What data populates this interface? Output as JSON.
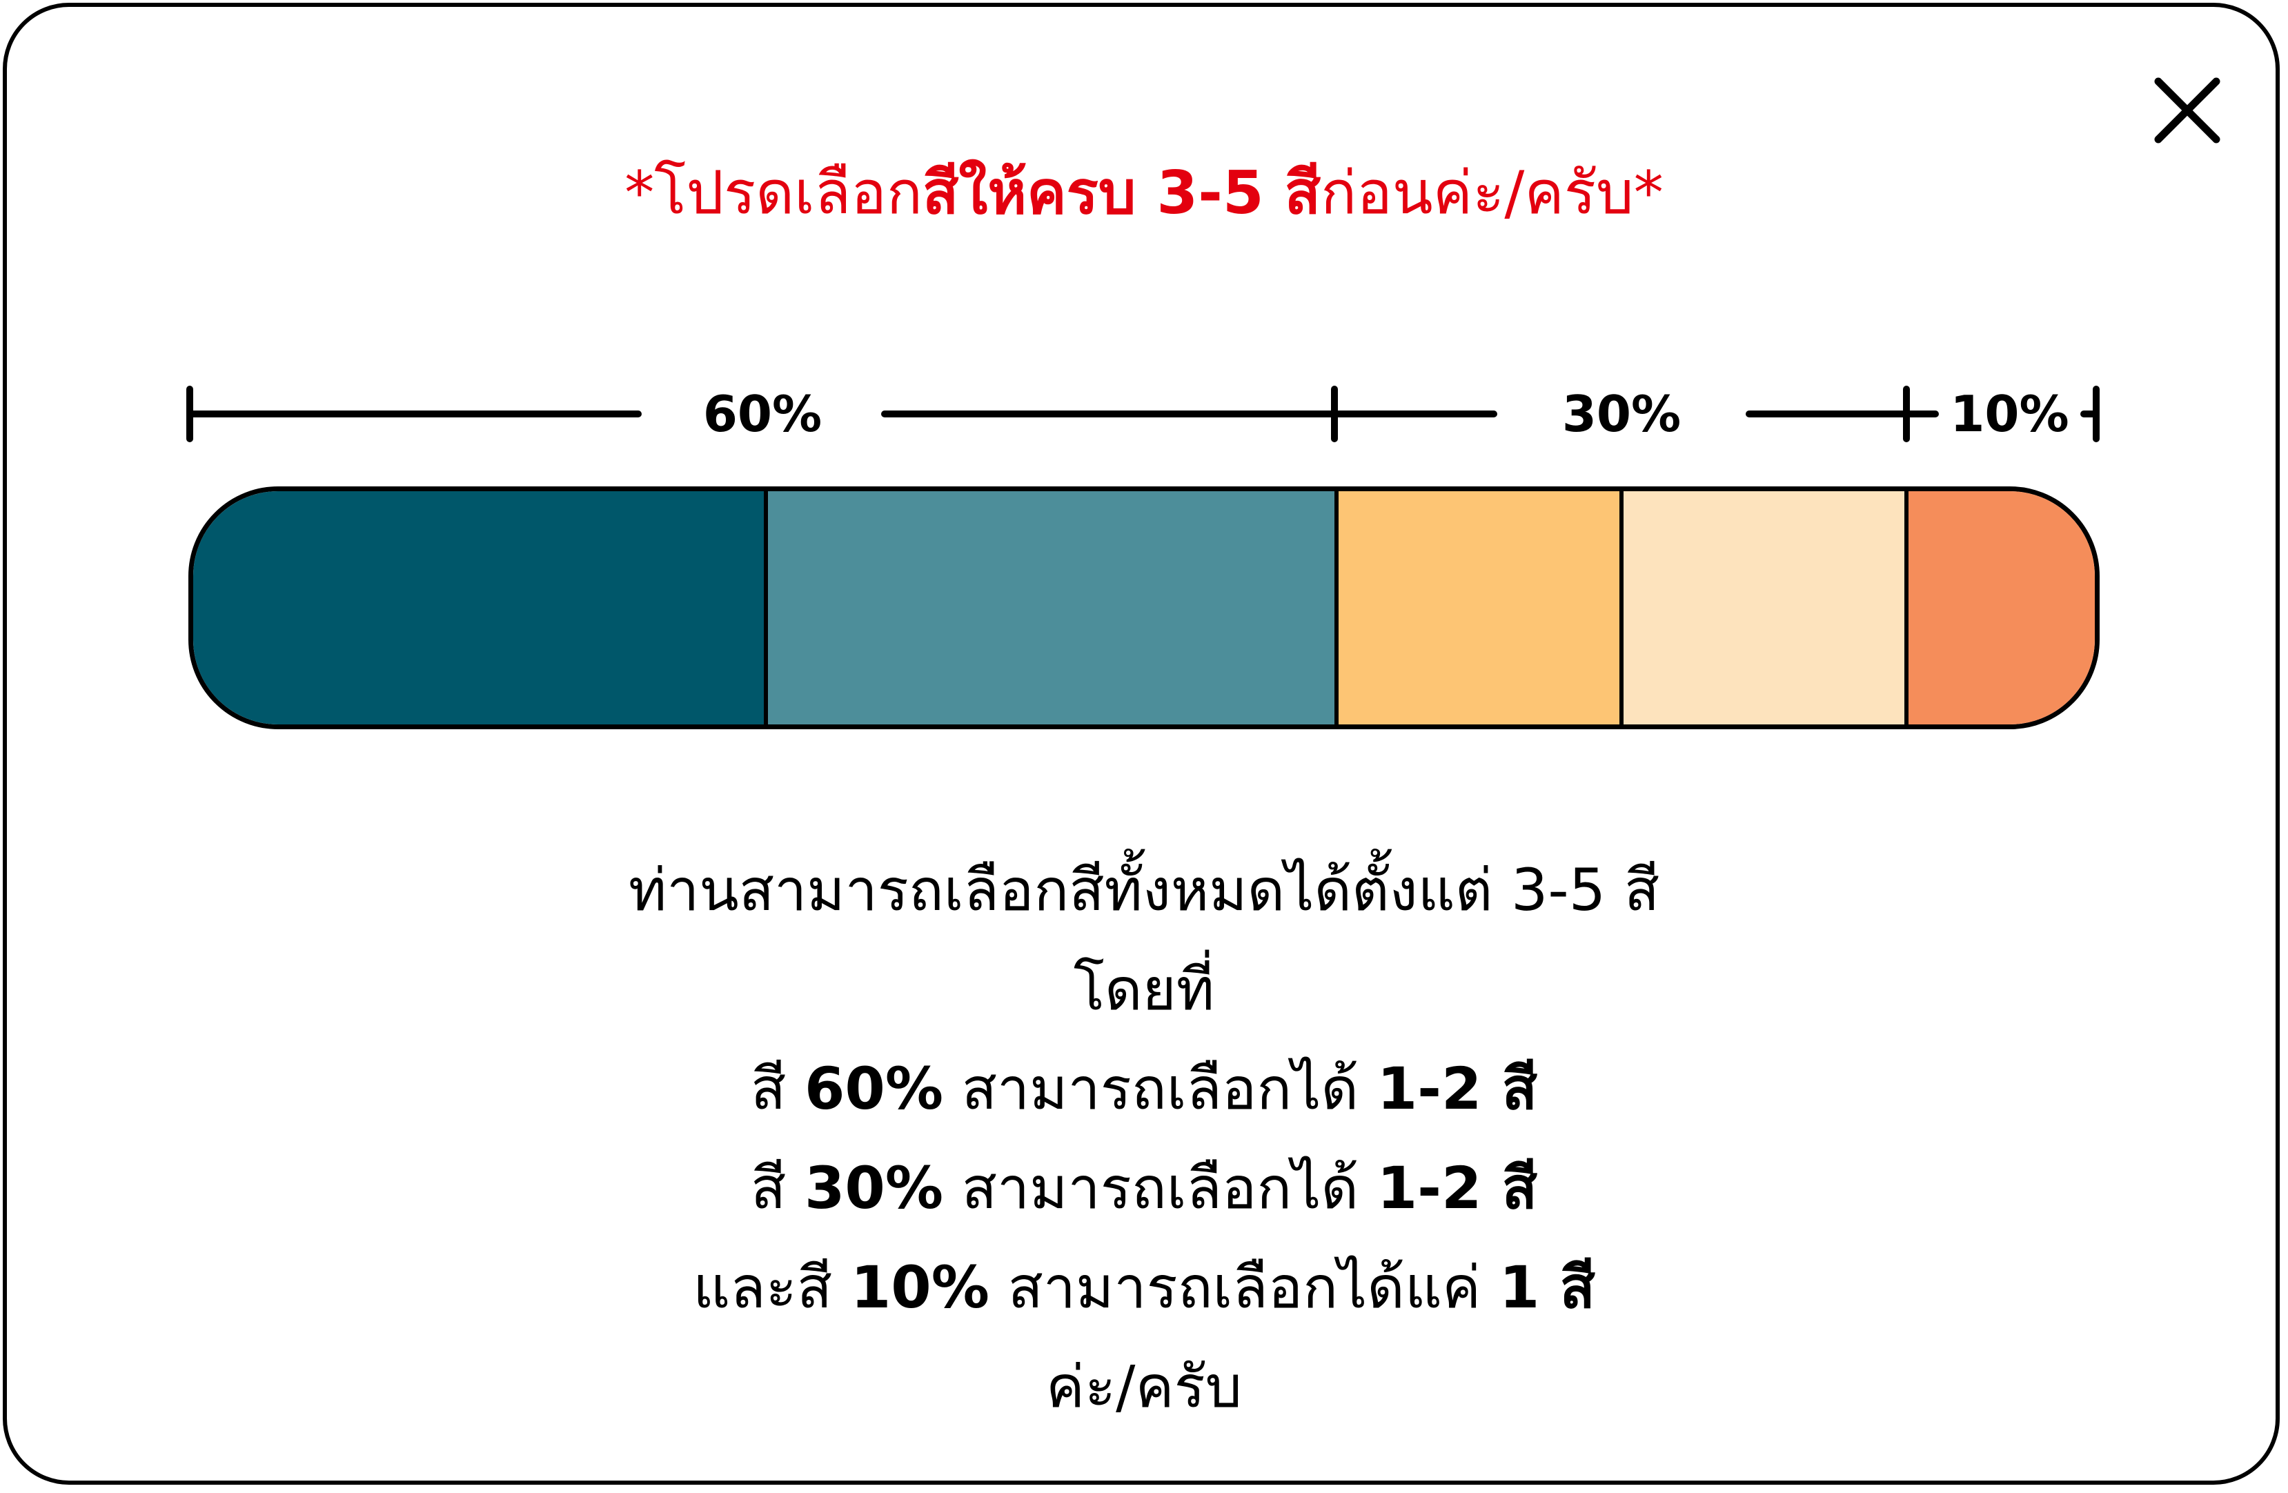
{
  "close_button": {
    "icon": "close-icon",
    "label": "Close"
  },
  "warning": {
    "color": "#e3000f",
    "prefix": "*โปรดเลือก",
    "emphasis": "สีให้ครบ 3-5 สี",
    "suffix": "ก่อนค่ะ/ครับ*"
  },
  "scale": {
    "labels": [
      "60%",
      "30%",
      "10%"
    ]
  },
  "palette": {
    "segments": [
      {
        "group": "60%",
        "color": "#00576a",
        "share": 0.3
      },
      {
        "group": "60%",
        "color": "#4d8e9a",
        "share": 0.3
      },
      {
        "group": "30%",
        "color": "#fdc574",
        "share": 0.15
      },
      {
        "group": "30%",
        "color": "#fde3bd",
        "share": 0.15
      },
      {
        "group": "10%",
        "color": "#f58d5a",
        "share": 0.1
      }
    ]
  },
  "instructions": {
    "line1": "ท่านสามารถเลือกสีทั้งหมดได้ตั้งแต่ 3-5 สี",
    "line2": "โดยที่",
    "line3": {
      "a": "สี ",
      "b": "60%",
      "c": " สามารถเลือกได้ ",
      "d": "1-2 สี"
    },
    "line4": {
      "a": "สี ",
      "b": "30%",
      "c": " สามารถเลือกได้ ",
      "d": "1-2 สี"
    },
    "line5": {
      "a": "และสี ",
      "b": "10%",
      "c": " สามารถเลือกได้แค่ ",
      "d": "1 สี"
    },
    "line6": "ค่ะ/ครับ"
  }
}
